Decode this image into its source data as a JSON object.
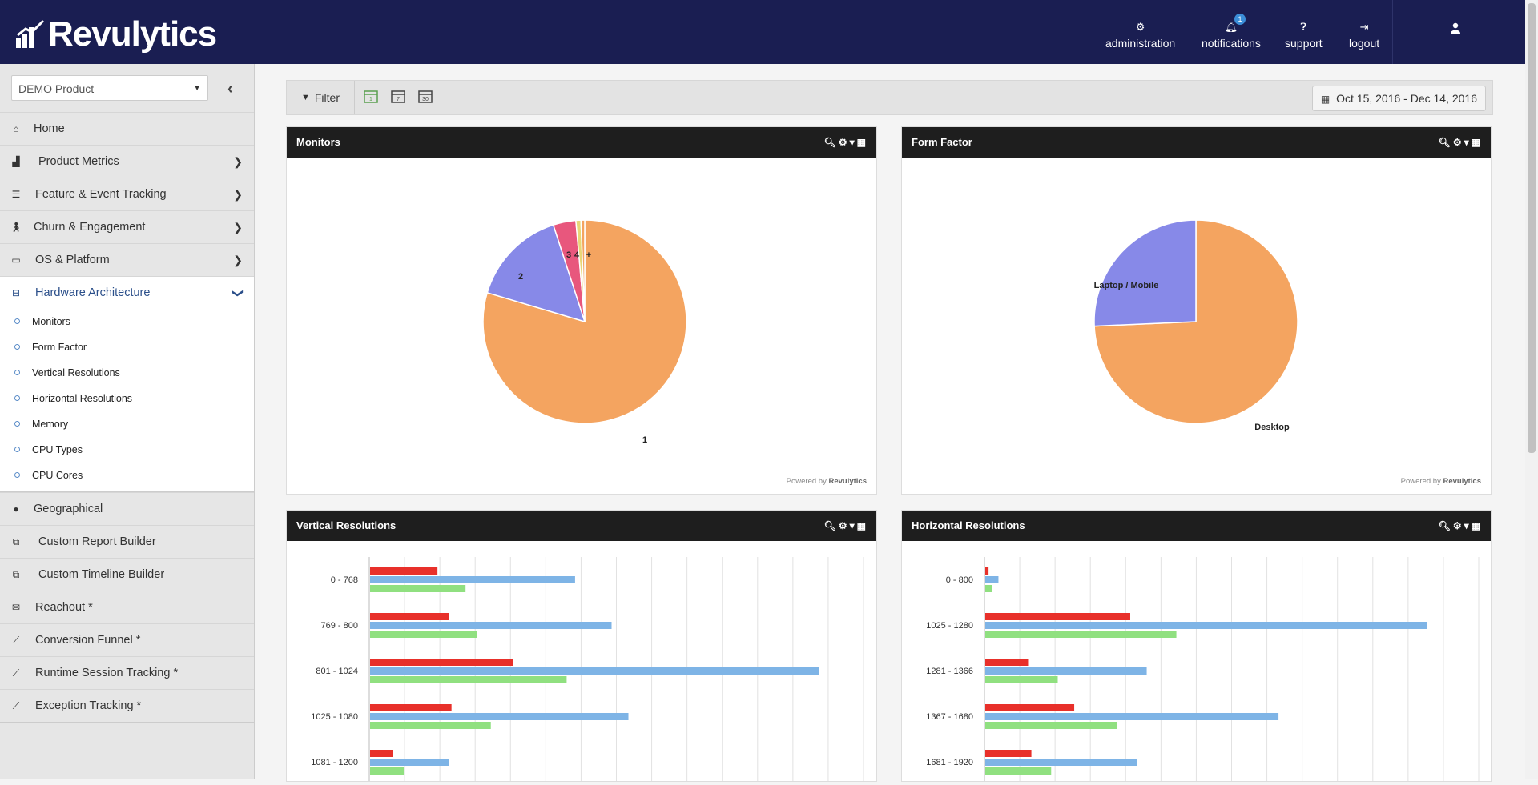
{
  "app": {
    "logo_text": "Revulytics"
  },
  "topnav": {
    "administration": {
      "icon": "cogs-icon",
      "label": "administration"
    },
    "notifications": {
      "icon": "bell-icon",
      "label": "notifications",
      "badge": "1"
    },
    "support": {
      "icon": "question-circle-icon",
      "label": "support"
    },
    "logout": {
      "icon": "sign-out-icon",
      "label": "logout"
    }
  },
  "sidebar": {
    "product_select": "DEMO Product",
    "items": [
      {
        "label": "Home",
        "icon": "home-icon"
      },
      {
        "label": "Product Metrics",
        "icon": "area-chart-icon"
      },
      {
        "label": "Feature & Event Tracking",
        "icon": "tasks-icon"
      },
      {
        "label": "Churn & Engagement",
        "icon": "walking-icon"
      },
      {
        "label": "OS & Platform",
        "icon": "desktop-icon"
      },
      {
        "label": "Hardware Architecture",
        "icon": "hdd-icon"
      }
    ],
    "hardware_sub": [
      "Monitors",
      "Form Factor",
      "Vertical Resolutions",
      "Horizontal Resolutions",
      "Memory",
      "CPU Types",
      "CPU Cores"
    ],
    "items_after": [
      {
        "label": "Geographical",
        "icon": "globe-icon"
      },
      {
        "label": "Custom Report Builder",
        "icon": "cubes-icon"
      },
      {
        "label": "Custom Timeline Builder",
        "icon": "cubes-icon"
      },
      {
        "label": "Reachout *",
        "icon": "envelope-icon"
      },
      {
        "label": "Conversion Funnel *",
        "icon": "line-chart-icon"
      },
      {
        "label": "Runtime Session Tracking *",
        "icon": "line-chart-icon"
      },
      {
        "label": "Exception Tracking *",
        "icon": "line-chart-icon"
      }
    ]
  },
  "toolbar": {
    "filter_label": "Filter",
    "cal_1": "1",
    "cal_7": "7",
    "cal_30": "30",
    "date_range": "Oct 15, 2016 - Dec 14, 2016"
  },
  "panels": {
    "monitors": {
      "title": "Monitors"
    },
    "form_factor": {
      "title": "Form Factor"
    },
    "vertical": {
      "title": "Vertical Resolutions"
    },
    "horizontal": {
      "title": "Horizontal Resolutions"
    },
    "powered_prefix": "Powered by",
    "powered_brand": "Revulytics"
  },
  "colors": {
    "orange": "#f4a460",
    "blue_purple": "#8789e8",
    "pink": "#e8577d",
    "yellow": "#e8d778",
    "bar_red": "#e8302a",
    "bar_blue": "#7eb4e6",
    "bar_green": "#90e080"
  },
  "chart_data": [
    {
      "type": "pie",
      "title": "Monitors",
      "labels": [
        "1",
        "2",
        "3",
        "4",
        "+"
      ],
      "values": [
        79.6,
        15.4,
        3.6,
        0.8,
        0.6
      ]
    },
    {
      "type": "pie",
      "title": "Form Factor",
      "labels": [
        "Desktop",
        "Laptop / Mobile"
      ],
      "values": [
        74.3,
        25.7
      ]
    },
    {
      "type": "bar",
      "title": "Vertical Resolutions",
      "orientation": "horizontal",
      "categories": [
        "0 - 768",
        "769 - 800",
        "801 - 1024",
        "1025 - 1080",
        "1081 - 1200"
      ],
      "series": [
        {
          "name": "red",
          "values": [
            12,
            14,
            25.5,
            14.5,
            4
          ]
        },
        {
          "name": "blue",
          "values": [
            36.5,
            43,
            80,
            46,
            14
          ]
        },
        {
          "name": "green",
          "values": [
            17,
            19,
            35,
            21.5,
            6
          ]
        }
      ],
      "xlim": [
        0,
        88
      ],
      "grid": true
    },
    {
      "type": "bar",
      "title": "Horizontal Resolutions",
      "orientation": "horizontal",
      "categories": [
        "0 - 800",
        "1025 - 1280",
        "1281 - 1366",
        "1367 - 1680",
        "1681 - 1920"
      ],
      "series": [
        {
          "name": "red",
          "values": [
            0.5,
            22,
            6.5,
            13.5,
            7
          ]
        },
        {
          "name": "blue",
          "values": [
            2,
            67,
            24.5,
            44.5,
            23
          ]
        },
        {
          "name": "green",
          "values": [
            1,
            29,
            11,
            20,
            10
          ]
        }
      ],
      "xlim": [
        0,
        75
      ],
      "grid": true
    }
  ]
}
